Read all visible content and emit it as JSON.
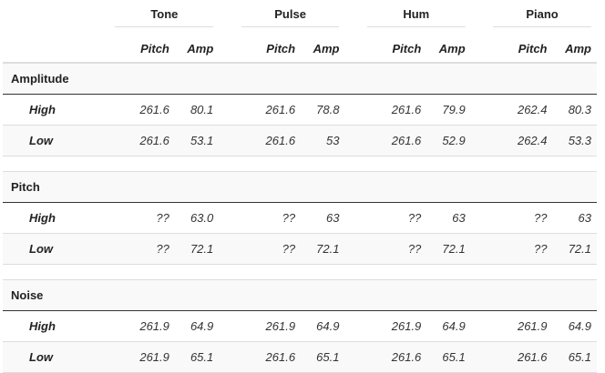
{
  "groups": [
    "Tone",
    "Pulse",
    "Hum",
    "Piano"
  ],
  "subheaders": {
    "pitch": "Pitch",
    "amp": "Amp"
  },
  "sections": [
    {
      "title": "Amplitude",
      "rows": [
        {
          "label": "High",
          "values": [
            "261.6",
            "80.1",
            "261.6",
            "78.8",
            "261.6",
            "79.9",
            "262.4",
            "80.3"
          ]
        },
        {
          "label": "Low",
          "values": [
            "261.6",
            "53.1",
            "261.6",
            "53",
            "261.6",
            "52.9",
            "262.4",
            "53.3"
          ]
        }
      ]
    },
    {
      "title": "Pitch",
      "rows": [
        {
          "label": "High",
          "values": [
            "??",
            "63.0",
            "??",
            "63",
            "??",
            "63",
            "??",
            "63"
          ]
        },
        {
          "label": "Low",
          "values": [
            "??",
            "72.1",
            "??",
            "72.1",
            "??",
            "72.1",
            "??",
            "72.1"
          ]
        }
      ]
    },
    {
      "title": "Noise",
      "rows": [
        {
          "label": "High",
          "values": [
            "261.9",
            "64.9",
            "261.9",
            "64.9",
            "261.9",
            "64.9",
            "261.9",
            "64.9"
          ]
        },
        {
          "label": "Low",
          "values": [
            "261.9",
            "65.1",
            "261.6",
            "65.1",
            "261.6",
            "65.1",
            "261.6",
            "65.1"
          ]
        }
      ]
    }
  ]
}
